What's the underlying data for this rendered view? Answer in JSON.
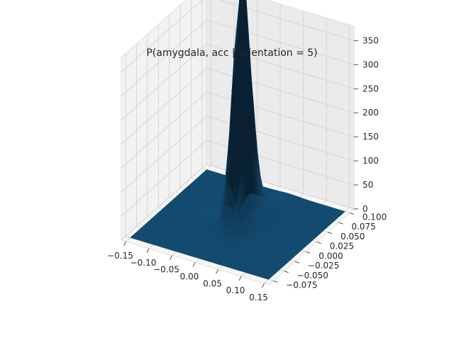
{
  "chart_data": {
    "type": "surface3d",
    "title": "P(amygdala, acc | orientation = 5)",
    "xlabel": "",
    "ylabel": "",
    "zlabel": "",
    "x_ticks": [
      -0.15,
      -0.1,
      -0.05,
      0.0,
      0.05,
      0.1,
      0.15
    ],
    "x_tick_labels": [
      "−0.15",
      "−0.10",
      "−0.05",
      "0.00",
      "0.05",
      "0.10",
      "0.15"
    ],
    "y_ticks": [
      -0.075,
      -0.05,
      -0.025,
      0.0,
      0.025,
      0.05,
      0.075,
      0.1
    ],
    "y_tick_labels": [
      "−0.075",
      "−0.050",
      "−0.025",
      "0.000",
      "0.025",
      "0.050",
      "0.075",
      "0.100"
    ],
    "z_ticks": [
      0,
      50,
      100,
      150,
      200,
      250,
      300,
      350
    ],
    "z_tick_labels": [
      "0",
      "50",
      "100",
      "150",
      "200",
      "250",
      "300",
      "350"
    ],
    "xlim": [
      -0.16,
      0.16
    ],
    "ylim": [
      -0.085,
      0.11
    ],
    "zlim": [
      0,
      380
    ],
    "grid": true,
    "surface_color": "#1f77b4",
    "peaks": [
      {
        "x": 0.0,
        "y": 0.03,
        "height": 360,
        "sx": 0.009,
        "sy": 0.015
      },
      {
        "x": -0.005,
        "y": 0.015,
        "height": 200,
        "sx": 0.011,
        "sy": 0.013
      },
      {
        "x": 0.012,
        "y": 0.005,
        "height": 60,
        "sx": 0.016,
        "sy": 0.018
      },
      {
        "x": 0.03,
        "y": 0.05,
        "height": 25,
        "sx": 0.02,
        "sy": 0.022
      },
      {
        "x": -0.04,
        "y": 0.0,
        "height": 15,
        "sx": 0.02,
        "sy": 0.02
      }
    ]
  }
}
